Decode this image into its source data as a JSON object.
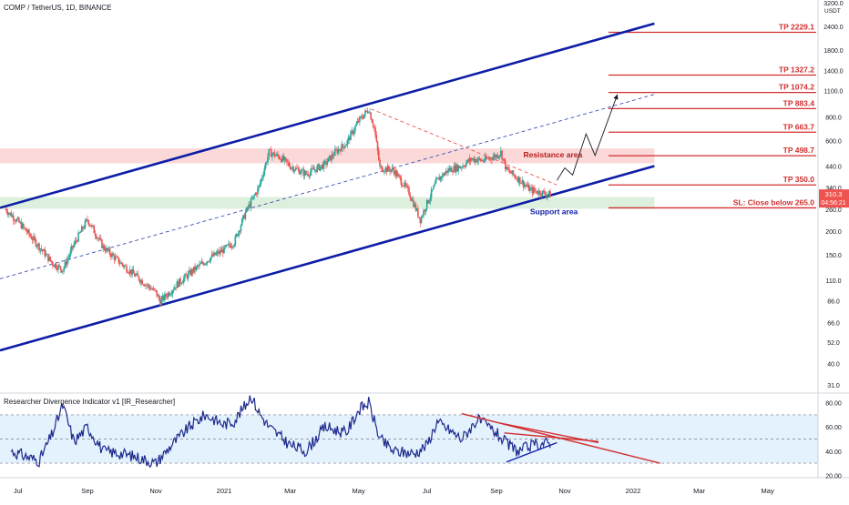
{
  "header": {
    "title": "COMP / TetherUS, 1D, BINANCE"
  },
  "indicator": {
    "title": "Researcher Divergence Indicator v1 [IR_Researcher]"
  },
  "price_axis": {
    "unit": "USDT",
    "ticks": [
      "3200.0",
      "2400.0",
      "1800.0",
      "1400.0",
      "1100.0",
      "800.0",
      "600.0",
      "440.0",
      "340.0",
      "260.0",
      "200.0",
      "150.0",
      "110.0",
      "86.0",
      "66.0",
      "52.0",
      "40.0",
      "31.0"
    ],
    "last_price": "310.3",
    "countdown": "04:56:21"
  },
  "osc_axis": {
    "ticks": [
      "80.00",
      "60.00",
      "40.00",
      "20.00"
    ]
  },
  "time_axis": {
    "ticks": [
      "Jul",
      "Sep",
      "Nov",
      "2021",
      "Mar",
      "May",
      "Jul",
      "Sep",
      "Nov",
      "2022",
      "Mar",
      "May"
    ]
  },
  "levels": [
    {
      "label": "TP 2229.1",
      "price": 2229.1
    },
    {
      "label": "TP 1327.2",
      "price": 1327.2
    },
    {
      "label": "TP 1074.2",
      "price": 1074.2
    },
    {
      "label": "TP 883.4",
      "price": 883.4
    },
    {
      "label": "TP 663.7",
      "price": 663.7
    },
    {
      "label": "TP 498.7",
      "price": 498.7
    },
    {
      "label": "TP 350.0",
      "price": 350.0
    },
    {
      "label": "SL: Close below 265.0",
      "price": 265.0
    }
  ],
  "zones": {
    "resistance_label": "Resistance area",
    "support_label": "Support area"
  },
  "colors": {
    "up": "#26a69a",
    "down": "#ef5350",
    "channel": "#0d1ea6",
    "tp": "#d32f2f",
    "osc": "#1e2a8c",
    "price_label": "#ef5350"
  },
  "chart_data": {
    "type": "candlestick",
    "title": "COMP / TetherUS, 1D, BINANCE",
    "y_scale": "log",
    "ylim": [
      28,
      3300
    ],
    "x_range": [
      "2020-06-15",
      "2022-06-15"
    ],
    "series": [
      {
        "name": "COMP / TetherUS",
        "points": [
          [
            "2020-06-20",
            260
          ],
          [
            "2020-07-01",
            225
          ],
          [
            "2020-07-15",
            180
          ],
          [
            "2020-08-01",
            135
          ],
          [
            "2020-08-10",
            125
          ],
          [
            "2020-08-20",
            170
          ],
          [
            "2020-09-01",
            230
          ],
          [
            "2020-09-05",
            210
          ],
          [
            "2020-09-15",
            165
          ],
          [
            "2020-10-01",
            135
          ],
          [
            "2020-10-15",
            115
          ],
          [
            "2020-11-01",
            95
          ],
          [
            "2020-11-05",
            85
          ],
          [
            "2020-11-20",
            105
          ],
          [
            "2020-12-05",
            125
          ],
          [
            "2020-12-20",
            145
          ],
          [
            "2021-01-01",
            160
          ],
          [
            "2021-01-10",
            175
          ],
          [
            "2021-01-20",
            250
          ],
          [
            "2021-02-01",
            340
          ],
          [
            "2021-02-10",
            520
          ],
          [
            "2021-02-20",
            490
          ],
          [
            "2021-03-01",
            440
          ],
          [
            "2021-03-15",
            400
          ],
          [
            "2021-04-01",
            450
          ],
          [
            "2021-04-10",
            520
          ],
          [
            "2021-04-20",
            580
          ],
          [
            "2021-05-01",
            760
          ],
          [
            "2021-05-10",
            880
          ],
          [
            "2021-05-15",
            700
          ],
          [
            "2021-05-20",
            430
          ],
          [
            "2021-06-01",
            420
          ],
          [
            "2021-06-15",
            320
          ],
          [
            "2021-06-25",
            230
          ],
          [
            "2021-07-01",
            280
          ],
          [
            "2021-07-10",
            370
          ],
          [
            "2021-07-20",
            420
          ],
          [
            "2021-08-01",
            440
          ],
          [
            "2021-08-10",
            480
          ],
          [
            "2021-08-20",
            470
          ],
          [
            "2021-09-01",
            500
          ],
          [
            "2021-09-05",
            520
          ],
          [
            "2021-09-10",
            420
          ],
          [
            "2021-09-20",
            380
          ],
          [
            "2021-10-01",
            330
          ],
          [
            "2021-10-10",
            320
          ],
          [
            "2021-10-20",
            310.3
          ]
        ]
      },
      {
        "name": "Researcher Divergence Indicator v1",
        "points": [
          [
            "2020-06-25",
            40
          ],
          [
            "2020-07-10",
            35
          ],
          [
            "2020-07-20",
            32
          ],
          [
            "2020-08-01",
            55
          ],
          [
            "2020-08-10",
            78
          ],
          [
            "2020-08-20",
            48
          ],
          [
            "2020-09-01",
            60
          ],
          [
            "2020-09-15",
            40
          ],
          [
            "2020-10-01",
            38
          ],
          [
            "2020-10-15",
            35
          ],
          [
            "2020-11-01",
            30
          ],
          [
            "2020-11-15",
            45
          ],
          [
            "2020-12-01",
            60
          ],
          [
            "2020-12-15",
            70
          ],
          [
            "2021-01-01",
            62
          ],
          [
            "2021-01-10",
            65
          ],
          [
            "2021-01-20",
            78
          ],
          [
            "2021-01-25",
            86
          ],
          [
            "2021-02-01",
            72
          ],
          [
            "2021-02-10",
            60
          ],
          [
            "2021-03-01",
            45
          ],
          [
            "2021-03-15",
            40
          ],
          [
            "2021-04-01",
            60
          ],
          [
            "2021-04-20",
            55
          ],
          [
            "2021-05-01",
            74
          ],
          [
            "2021-05-10",
            80
          ],
          [
            "2021-05-20",
            50
          ],
          [
            "2021-06-01",
            40
          ],
          [
            "2021-06-20",
            38
          ],
          [
            "2021-07-01",
            45
          ],
          [
            "2021-07-10",
            64
          ],
          [
            "2021-07-20",
            58
          ],
          [
            "2021-08-01",
            50
          ],
          [
            "2021-08-15",
            66
          ],
          [
            "2021-08-25",
            60
          ],
          [
            "2021-09-01",
            55
          ],
          [
            "2021-09-10",
            46
          ],
          [
            "2021-09-20",
            40
          ],
          [
            "2021-10-01",
            44
          ],
          [
            "2021-10-10",
            46
          ],
          [
            "2021-10-20",
            47
          ]
        ]
      }
    ],
    "channel": {
      "upper": [
        [
          "2020-06-15",
          265
        ],
        [
          "2022-01-20",
          2480
        ]
      ],
      "lower": [
        [
          "2020-06-15",
          47
        ],
        [
          "2022-01-20",
          440
        ]
      ],
      "mid": [
        [
          "2020-06-15",
          112
        ],
        [
          "2022-01-20",
          1050
        ]
      ]
    },
    "zones": [
      {
        "name": "Resistance area",
        "from": 455,
        "to": 545
      },
      {
        "name": "Support area",
        "from": 262,
        "to": 302
      }
    ],
    "projection": [
      [
        "2021-10-25",
        370
      ],
      [
        "2021-11-01",
        430
      ],
      [
        "2021-11-08",
        395
      ],
      [
        "2021-11-20",
        650
      ],
      [
        "2021-11-28",
        500
      ],
      [
        "2021-12-18",
        1050
      ]
    ],
    "resistance_trend": [
      [
        "2021-05-12",
        880
      ],
      [
        "2021-10-25",
        350
      ]
    ],
    "osc_ylim": [
      18,
      88
    ],
    "osc_levels": [
      70,
      50,
      30
    ],
    "osc_trend": [
      {
        "from": [
          "2021-08-01",
          71
        ],
        "to": [
          "2022-01-25",
          30
        ]
      },
      {
        "from": [
          "2021-09-05",
          63
        ],
        "to": [
          "2021-12-01",
          47
        ]
      },
      {
        "from": [
          "2021-09-08",
          55
        ],
        "to": [
          "2021-12-01",
          48
        ]
      },
      {
        "from": [
          "2021-09-10",
          31
        ],
        "to": [
          "2021-10-25",
          47
        ]
      }
    ],
    "grid": false
  }
}
